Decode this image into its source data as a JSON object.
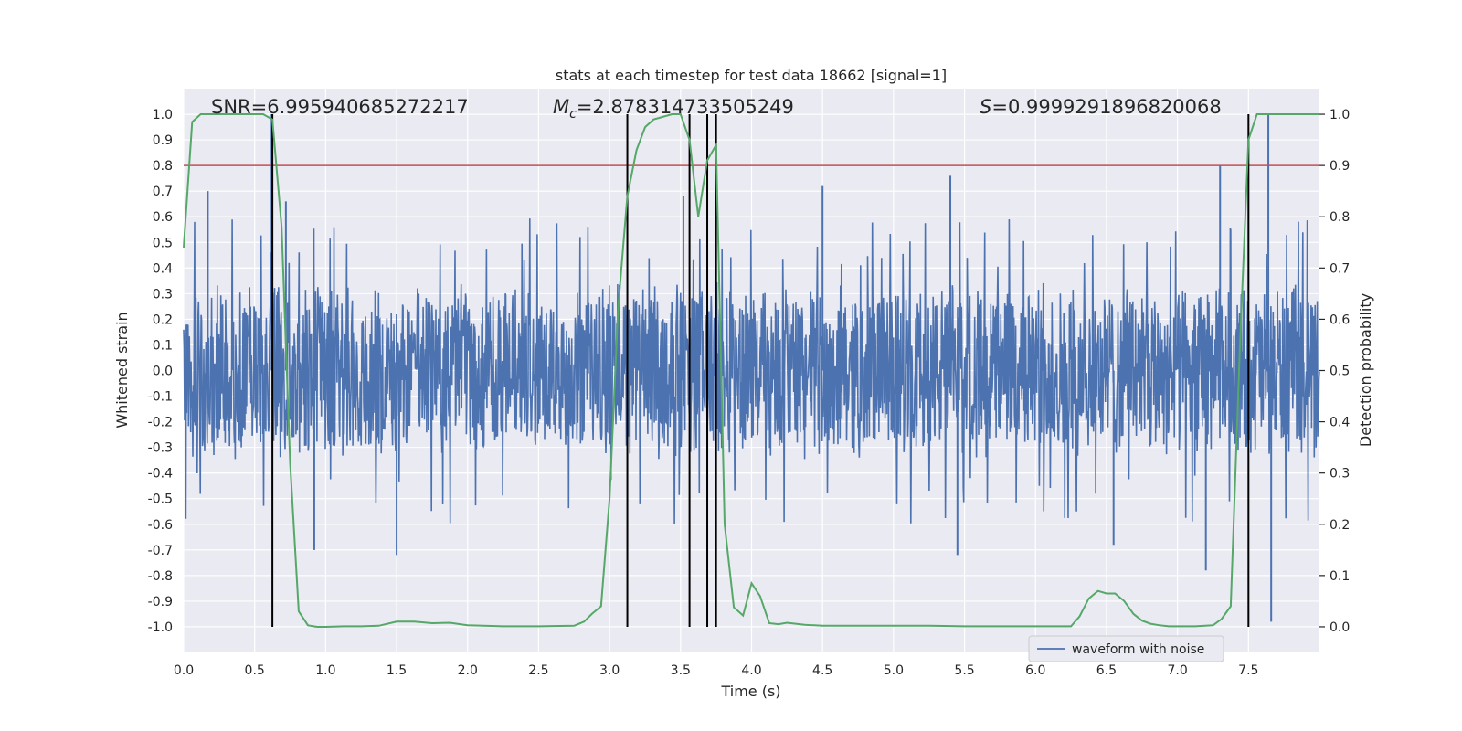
{
  "chart_data": {
    "type": "line",
    "title": "stats at each timestep for test data 18662 [signal=1]",
    "xlabel": "Time (s)",
    "ylabel": "Whitened strain",
    "y2label": "Detection probability",
    "xlim": [
      0.0,
      8.0
    ],
    "ylim": [
      -1.1,
      1.1
    ],
    "y2lim": [
      -0.05,
      1.05
    ],
    "xticks": [
      "0.0",
      "0.5",
      "1.0",
      "1.5",
      "2.0",
      "2.5",
      "3.0",
      "3.5",
      "4.0",
      "4.5",
      "5.0",
      "5.5",
      "6.0",
      "6.5",
      "7.0",
      "7.5"
    ],
    "yticks": [
      "1.0",
      "0.9",
      "0.8",
      "0.7",
      "0.6",
      "0.5",
      "0.4",
      "0.3",
      "0.2",
      "0.1",
      "0.0",
      "-0.1",
      "-0.2",
      "-0.3",
      "-0.4",
      "-0.5",
      "-0.6",
      "-0.7",
      "-0.8",
      "-0.9",
      "-1.0"
    ],
    "y2ticks": [
      "1.0",
      "0.9",
      "0.8",
      "0.7",
      "0.6",
      "0.5",
      "0.4",
      "0.3",
      "0.2",
      "0.1",
      "0.0"
    ],
    "grid": true,
    "legend_position": "lower-right",
    "annotations": {
      "snr": "SNR=6.995940685272217",
      "mc_symbol": "M",
      "mc_subscript": "c",
      "mc_value": "=2.878314733505249",
      "s_symbol": "S",
      "s_value": "=0.9999291896820068"
    },
    "threshold": {
      "y2": 0.9,
      "color": "#c44e52"
    },
    "vertical_markers_x": [
      0.625,
      3.125,
      3.563,
      3.688,
      3.75,
      7.5
    ],
    "series": [
      {
        "name": "waveform with noise",
        "color": "#4c72b0",
        "kind": "noise",
        "x_range": [
          0.0,
          8.0
        ],
        "core_amplitude": 0.35,
        "notable_peaks": [
          {
            "x": 0.17,
            "y": 0.7
          },
          {
            "x": 0.62,
            "y": 1.0
          },
          {
            "x": 0.72,
            "y": 0.66
          },
          {
            "x": 3.52,
            "y": 0.68
          },
          {
            "x": 4.5,
            "y": 0.72
          },
          {
            "x": 5.4,
            "y": 0.76
          },
          {
            "x": 7.3,
            "y": 0.8
          },
          {
            "x": 7.64,
            "y": 1.0
          },
          {
            "x": 7.66,
            "y": -0.98
          },
          {
            "x": 1.5,
            "y": -0.72
          },
          {
            "x": 5.45,
            "y": -0.72
          },
          {
            "x": 7.2,
            "y": -0.78
          },
          {
            "x": 0.92,
            "y": -0.7
          },
          {
            "x": 6.55,
            "y": -0.68
          }
        ]
      },
      {
        "name": "",
        "color": "#55a868",
        "axis": "y2",
        "x": [
          0.0,
          0.06,
          0.12,
          0.19,
          0.25,
          0.31,
          0.38,
          0.44,
          0.5,
          0.56,
          0.625,
          0.69,
          0.75,
          0.81,
          0.875,
          0.94,
          1.0,
          1.125,
          1.25,
          1.375,
          1.5,
          1.625,
          1.75,
          1.875,
          2.0,
          2.25,
          2.5,
          2.75,
          2.82,
          2.875,
          2.94,
          3.0,
          3.06,
          3.125,
          3.19,
          3.25,
          3.31,
          3.375,
          3.44,
          3.5,
          3.563,
          3.625,
          3.688,
          3.75,
          3.81,
          3.875,
          3.94,
          4.0,
          4.06,
          4.125,
          4.19,
          4.25,
          4.31,
          4.375,
          4.5,
          4.75,
          5.0,
          5.25,
          5.5,
          5.75,
          6.0,
          6.25,
          6.31,
          6.375,
          6.44,
          6.5,
          6.56,
          6.625,
          6.69,
          6.75,
          6.81,
          6.875,
          6.94,
          7.0,
          7.125,
          7.25,
          7.31,
          7.375,
          7.44,
          7.5,
          7.56,
          7.625,
          7.69,
          7.75,
          7.81,
          7.875,
          8.0
        ],
        "y": [
          0.74,
          0.985,
          1.0,
          1.0,
          1.0,
          1.0,
          1.0,
          1.0,
          1.0,
          1.0,
          0.99,
          0.78,
          0.32,
          0.03,
          0.003,
          0.0,
          0.0,
          0.001,
          0.001,
          0.002,
          0.01,
          0.01,
          0.007,
          0.008,
          0.003,
          0.001,
          0.001,
          0.002,
          0.01,
          0.025,
          0.04,
          0.25,
          0.62,
          0.84,
          0.93,
          0.975,
          0.99,
          0.995,
          1.0,
          1.0,
          0.95,
          0.8,
          0.91,
          0.94,
          0.2,
          0.038,
          0.022,
          0.085,
          0.06,
          0.007,
          0.005,
          0.008,
          0.006,
          0.004,
          0.002,
          0.002,
          0.002,
          0.002,
          0.001,
          0.001,
          0.001,
          0.001,
          0.02,
          0.055,
          0.07,
          0.065,
          0.065,
          0.05,
          0.025,
          0.012,
          0.006,
          0.003,
          0.001,
          0.001,
          0.001,
          0.003,
          0.015,
          0.04,
          0.55,
          0.95,
          1.0,
          1.0,
          1.0,
          1.0,
          1.0,
          1.0,
          1.0
        ]
      }
    ]
  }
}
